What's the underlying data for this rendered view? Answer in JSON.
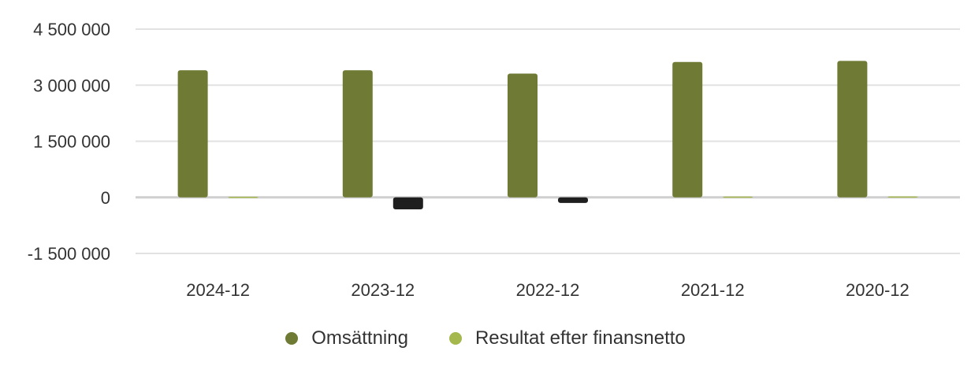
{
  "chart_data": {
    "type": "bar",
    "categories": [
      "2024-12",
      "2023-12",
      "2022-12",
      "2021-12",
      "2020-12"
    ],
    "series": [
      {
        "name": "Omsättning",
        "color": "#6f7b34",
        "values": [
          3400000,
          3400000,
          3310000,
          3620000,
          3650000
        ]
      },
      {
        "name": "Resultat efter finansnetto",
        "color": "#a4b84e",
        "negative_color": "#1f1f1f",
        "values": [
          15000,
          -320000,
          -150000,
          20000,
          25000
        ]
      }
    ],
    "yticks": [
      4500000,
      3000000,
      1500000,
      0,
      -1500000
    ],
    "ytick_labels": [
      "4 500 000",
      "3 000 000",
      "1 500 000",
      "0",
      "-1 500 000"
    ],
    "ylim": [
      -1500000,
      4500000
    ],
    "grid": true,
    "legend_position": "bottom"
  }
}
